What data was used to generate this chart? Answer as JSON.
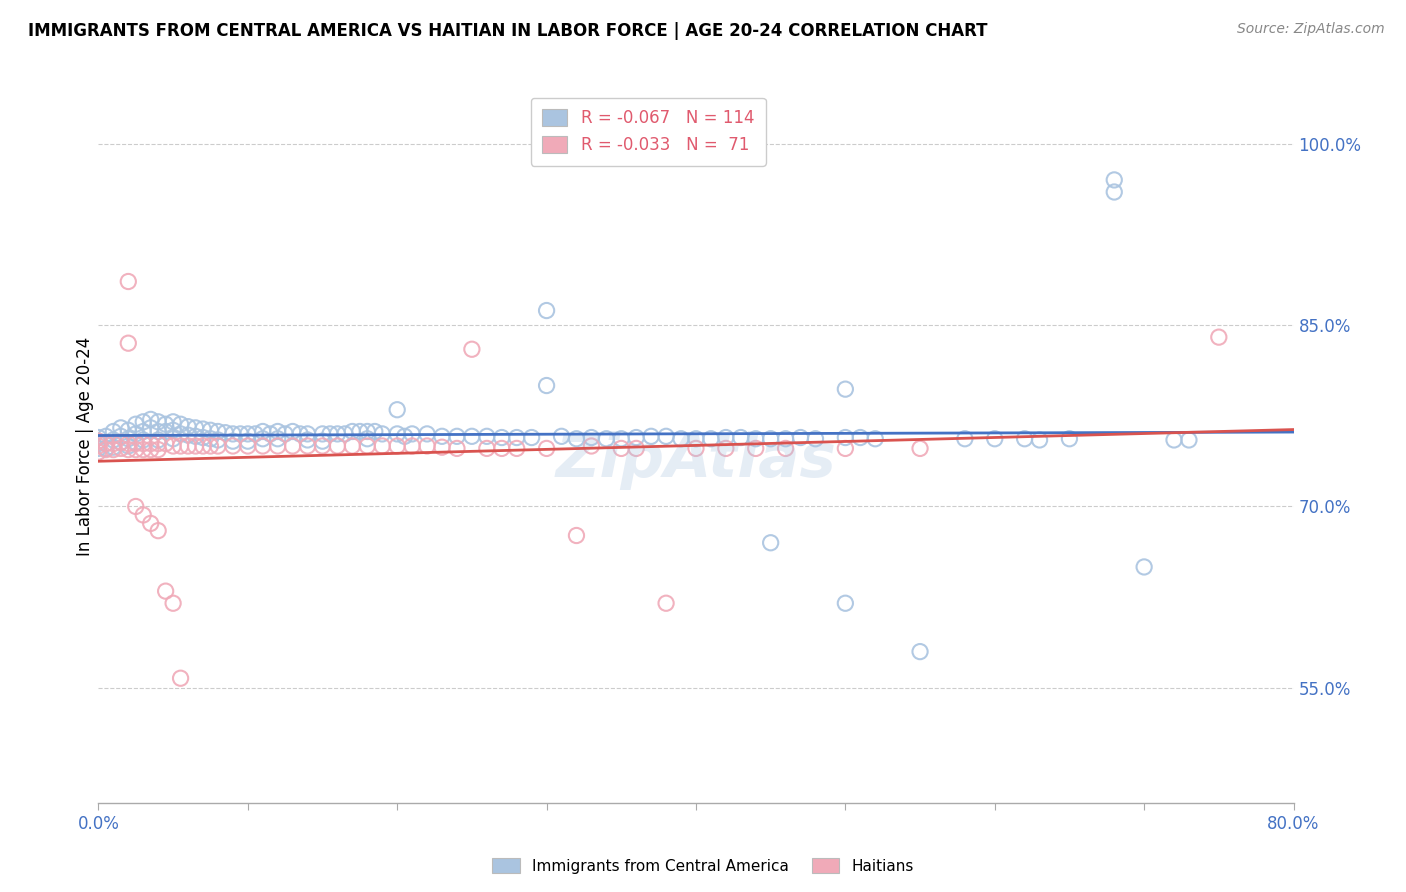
{
  "title": "IMMIGRANTS FROM CENTRAL AMERICA VS HAITIAN IN LABOR FORCE | AGE 20-24 CORRELATION CHART",
  "source": "Source: ZipAtlas.com",
  "ylabel": "In Labor Force | Age 20-24",
  "xlim": [
    0.0,
    0.8
  ],
  "ylim": [
    0.455,
    1.045
  ],
  "xticks": [
    0.0,
    0.1,
    0.2,
    0.3,
    0.4,
    0.5,
    0.6,
    0.7,
    0.8
  ],
  "yticks": [
    0.55,
    0.7,
    0.85,
    1.0
  ],
  "ytick_labels": [
    "55.0%",
    "70.0%",
    "85.0%",
    "100.0%"
  ],
  "xtick_labels_show": [
    "0.0%",
    "80.0%"
  ],
  "blue_color": "#aac4e0",
  "pink_color": "#f0aab8",
  "blue_line_color": "#4472c4",
  "pink_line_color": "#d9534f",
  "R_blue": -0.067,
  "N_blue": 114,
  "R_pink": -0.033,
  "N_pink": 71,
  "legend_label_blue": "Immigrants from Central America",
  "legend_label_pink": "Haitians",
  "watermark": "ZipAtlas",
  "blue_scatter": [
    [
      0.0,
      0.754
    ],
    [
      0.0,
      0.757
    ],
    [
      0.0,
      0.752
    ],
    [
      0.0,
      0.748
    ],
    [
      0.005,
      0.758
    ],
    [
      0.005,
      0.752
    ],
    [
      0.005,
      0.748
    ],
    [
      0.01,
      0.762
    ],
    [
      0.01,
      0.755
    ],
    [
      0.01,
      0.749
    ],
    [
      0.015,
      0.765
    ],
    [
      0.015,
      0.758
    ],
    [
      0.015,
      0.753
    ],
    [
      0.02,
      0.763
    ],
    [
      0.02,
      0.756
    ],
    [
      0.02,
      0.75
    ],
    [
      0.025,
      0.768
    ],
    [
      0.025,
      0.76
    ],
    [
      0.025,
      0.753
    ],
    [
      0.03,
      0.77
    ],
    [
      0.03,
      0.762
    ],
    [
      0.03,
      0.755
    ],
    [
      0.035,
      0.772
    ],
    [
      0.035,
      0.765
    ],
    [
      0.04,
      0.77
    ],
    [
      0.04,
      0.762
    ],
    [
      0.04,
      0.755
    ],
    [
      0.045,
      0.768
    ],
    [
      0.045,
      0.762
    ],
    [
      0.05,
      0.77
    ],
    [
      0.05,
      0.763
    ],
    [
      0.05,
      0.756
    ],
    [
      0.055,
      0.768
    ],
    [
      0.055,
      0.76
    ],
    [
      0.06,
      0.766
    ],
    [
      0.06,
      0.759
    ],
    [
      0.065,
      0.765
    ],
    [
      0.065,
      0.758
    ],
    [
      0.07,
      0.764
    ],
    [
      0.07,
      0.757
    ],
    [
      0.075,
      0.763
    ],
    [
      0.075,
      0.756
    ],
    [
      0.08,
      0.762
    ],
    [
      0.08,
      0.755
    ],
    [
      0.085,
      0.761
    ],
    [
      0.09,
      0.76
    ],
    [
      0.09,
      0.754
    ],
    [
      0.095,
      0.76
    ],
    [
      0.1,
      0.76
    ],
    [
      0.1,
      0.754
    ],
    [
      0.105,
      0.76
    ],
    [
      0.11,
      0.762
    ],
    [
      0.11,
      0.756
    ],
    [
      0.115,
      0.76
    ],
    [
      0.12,
      0.762
    ],
    [
      0.12,
      0.756
    ],
    [
      0.125,
      0.76
    ],
    [
      0.13,
      0.762
    ],
    [
      0.135,
      0.76
    ],
    [
      0.14,
      0.76
    ],
    [
      0.14,
      0.755
    ],
    [
      0.15,
      0.76
    ],
    [
      0.15,
      0.754
    ],
    [
      0.155,
      0.76
    ],
    [
      0.16,
      0.76
    ],
    [
      0.165,
      0.76
    ],
    [
      0.17,
      0.762
    ],
    [
      0.175,
      0.762
    ],
    [
      0.18,
      0.762
    ],
    [
      0.18,
      0.756
    ],
    [
      0.185,
      0.762
    ],
    [
      0.19,
      0.76
    ],
    [
      0.2,
      0.76
    ],
    [
      0.2,
      0.78
    ],
    [
      0.205,
      0.758
    ],
    [
      0.21,
      0.76
    ],
    [
      0.22,
      0.76
    ],
    [
      0.23,
      0.758
    ],
    [
      0.24,
      0.758
    ],
    [
      0.25,
      0.758
    ],
    [
      0.26,
      0.758
    ],
    [
      0.27,
      0.757
    ],
    [
      0.28,
      0.757
    ],
    [
      0.29,
      0.757
    ],
    [
      0.3,
      0.862
    ],
    [
      0.3,
      0.8
    ],
    [
      0.31,
      0.758
    ],
    [
      0.32,
      0.756
    ],
    [
      0.33,
      0.757
    ],
    [
      0.34,
      0.756
    ],
    [
      0.35,
      0.756
    ],
    [
      0.36,
      0.757
    ],
    [
      0.37,
      0.758
    ],
    [
      0.38,
      0.758
    ],
    [
      0.39,
      0.756
    ],
    [
      0.4,
      0.756
    ],
    [
      0.41,
      0.756
    ],
    [
      0.42,
      0.757
    ],
    [
      0.43,
      0.757
    ],
    [
      0.44,
      0.756
    ],
    [
      0.45,
      0.756
    ],
    [
      0.45,
      0.67
    ],
    [
      0.46,
      0.756
    ],
    [
      0.47,
      0.757
    ],
    [
      0.48,
      0.756
    ],
    [
      0.5,
      0.797
    ],
    [
      0.5,
      0.757
    ],
    [
      0.5,
      0.62
    ],
    [
      0.51,
      0.757
    ],
    [
      0.52,
      0.756
    ],
    [
      0.55,
      0.58
    ],
    [
      0.58,
      0.756
    ],
    [
      0.6,
      0.756
    ],
    [
      0.62,
      0.756
    ],
    [
      0.63,
      0.755
    ],
    [
      0.65,
      0.756
    ],
    [
      0.68,
      0.97
    ],
    [
      0.68,
      0.96
    ],
    [
      0.7,
      0.65
    ],
    [
      0.72,
      0.755
    ],
    [
      0.73,
      0.755
    ]
  ],
  "pink_scatter": [
    [
      0.0,
      0.754
    ],
    [
      0.0,
      0.75
    ],
    [
      0.0,
      0.745
    ],
    [
      0.005,
      0.752
    ],
    [
      0.005,
      0.747
    ],
    [
      0.01,
      0.752
    ],
    [
      0.01,
      0.747
    ],
    [
      0.015,
      0.753
    ],
    [
      0.015,
      0.748
    ],
    [
      0.02,
      0.886
    ],
    [
      0.02,
      0.835
    ],
    [
      0.02,
      0.752
    ],
    [
      0.02,
      0.747
    ],
    [
      0.025,
      0.752
    ],
    [
      0.025,
      0.747
    ],
    [
      0.025,
      0.7
    ],
    [
      0.03,
      0.752
    ],
    [
      0.03,
      0.747
    ],
    [
      0.03,
      0.693
    ],
    [
      0.035,
      0.752
    ],
    [
      0.035,
      0.747
    ],
    [
      0.035,
      0.686
    ],
    [
      0.04,
      0.752
    ],
    [
      0.04,
      0.747
    ],
    [
      0.04,
      0.68
    ],
    [
      0.045,
      0.752
    ],
    [
      0.045,
      0.63
    ],
    [
      0.05,
      0.75
    ],
    [
      0.05,
      0.62
    ],
    [
      0.055,
      0.75
    ],
    [
      0.055,
      0.558
    ],
    [
      0.06,
      0.75
    ],
    [
      0.065,
      0.75
    ],
    [
      0.07,
      0.75
    ],
    [
      0.075,
      0.75
    ],
    [
      0.08,
      0.75
    ],
    [
      0.09,
      0.75
    ],
    [
      0.1,
      0.75
    ],
    [
      0.11,
      0.75
    ],
    [
      0.12,
      0.75
    ],
    [
      0.13,
      0.75
    ],
    [
      0.14,
      0.75
    ],
    [
      0.15,
      0.75
    ],
    [
      0.16,
      0.75
    ],
    [
      0.17,
      0.75
    ],
    [
      0.18,
      0.75
    ],
    [
      0.19,
      0.75
    ],
    [
      0.2,
      0.75
    ],
    [
      0.21,
      0.75
    ],
    [
      0.22,
      0.75
    ],
    [
      0.23,
      0.749
    ],
    [
      0.24,
      0.748
    ],
    [
      0.25,
      0.83
    ],
    [
      0.26,
      0.748
    ],
    [
      0.27,
      0.748
    ],
    [
      0.28,
      0.748
    ],
    [
      0.3,
      0.748
    ],
    [
      0.32,
      0.676
    ],
    [
      0.33,
      0.75
    ],
    [
      0.35,
      0.748
    ],
    [
      0.36,
      0.748
    ],
    [
      0.38,
      0.62
    ],
    [
      0.4,
      0.748
    ],
    [
      0.42,
      0.748
    ],
    [
      0.44,
      0.748
    ],
    [
      0.46,
      0.748
    ],
    [
      0.5,
      0.748
    ],
    [
      0.55,
      0.748
    ],
    [
      0.75,
      0.84
    ]
  ]
}
